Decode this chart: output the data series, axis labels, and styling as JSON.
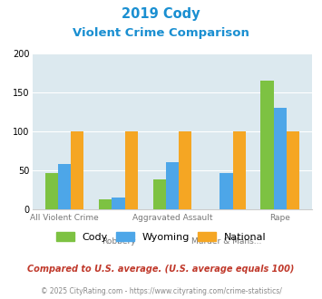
{
  "title_line1": "2019 Cody",
  "title_line2": "Violent Crime Comparison",
  "categories": [
    "All Violent Crime",
    "Robbery",
    "Aggravated Assault",
    "Murder & Mans...",
    "Rape"
  ],
  "cody": [
    47,
    13,
    38,
    0,
    165
  ],
  "wyoming": [
    58,
    15,
    61,
    47,
    130
  ],
  "national": [
    100,
    100,
    100,
    100,
    100
  ],
  "cody_color": "#7dc242",
  "wyoming_color": "#4da6e8",
  "national_color": "#f5a623",
  "bg_color": "#dce9ef",
  "ylim": [
    0,
    200
  ],
  "yticks": [
    0,
    50,
    100,
    150,
    200
  ],
  "bar_width": 0.24,
  "legend_labels": [
    "Cody",
    "Wyoming",
    "National"
  ],
  "footnote1": "Compared to U.S. average. (U.S. average equals 100)",
  "footnote2": "© 2025 CityRating.com - https://www.cityrating.com/crime-statistics/",
  "title_color": "#1a8fd1",
  "footnote1_color": "#c0392b",
  "footnote2_color": "#888888",
  "label_top": [
    "",
    "Robbery",
    "",
    "Murder & Mans...",
    ""
  ],
  "label_bottom": [
    "All Violent Crime",
    "",
    "Aggravated Assault",
    "",
    "Rape"
  ]
}
